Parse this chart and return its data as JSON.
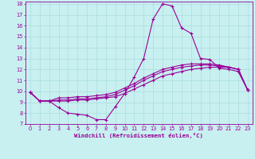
{
  "xlabel": "Windchill (Refroidissement éolien,°C)",
  "bg_color": "#c8f0f0",
  "line_color": "#990099",
  "grid_color": "#aadddd",
  "xlim": [
    -0.5,
    23.5
  ],
  "ylim": [
    7,
    18.2
  ],
  "yticks": [
    7,
    8,
    9,
    10,
    11,
    12,
    13,
    14,
    15,
    16,
    17,
    18
  ],
  "xticks": [
    0,
    1,
    2,
    3,
    4,
    5,
    6,
    7,
    8,
    9,
    10,
    11,
    12,
    13,
    14,
    15,
    16,
    17,
    18,
    19,
    20,
    21,
    22,
    23
  ],
  "line1_x": [
    0,
    1,
    2,
    3,
    4,
    5,
    6,
    7,
    8,
    9,
    10,
    11,
    12,
    13,
    14,
    15,
    16,
    17,
    18,
    19,
    20,
    21,
    22,
    23
  ],
  "line1_y": [
    9.9,
    9.1,
    9.1,
    8.5,
    8.0,
    7.9,
    7.8,
    7.4,
    7.4,
    8.6,
    9.8,
    11.3,
    13.0,
    16.6,
    18.0,
    17.8,
    15.8,
    15.3,
    13.0,
    12.9,
    12.1,
    12.0,
    11.8,
    10.1
  ],
  "line2_x": [
    0,
    1,
    2,
    3,
    4,
    5,
    6,
    7,
    8,
    9,
    10,
    11,
    12,
    13,
    14,
    15,
    16,
    17,
    18,
    19,
    20,
    21,
    22,
    23
  ],
  "line2_y": [
    9.9,
    9.1,
    9.1,
    9.1,
    9.1,
    9.2,
    9.2,
    9.3,
    9.4,
    9.5,
    9.8,
    10.2,
    10.6,
    11.0,
    11.4,
    11.6,
    11.8,
    12.0,
    12.1,
    12.2,
    12.2,
    12.2,
    12.0,
    10.1
  ],
  "line3_x": [
    0,
    1,
    2,
    3,
    4,
    5,
    6,
    7,
    8,
    9,
    10,
    11,
    12,
    13,
    14,
    15,
    16,
    17,
    18,
    19,
    20,
    21,
    22,
    23
  ],
  "line3_y": [
    9.9,
    9.1,
    9.1,
    9.2,
    9.2,
    9.3,
    9.3,
    9.4,
    9.5,
    9.7,
    10.1,
    10.5,
    11.0,
    11.4,
    11.8,
    12.0,
    12.2,
    12.3,
    12.4,
    12.4,
    12.3,
    12.2,
    12.0,
    10.1
  ],
  "line4_x": [
    0,
    1,
    2,
    3,
    4,
    5,
    6,
    7,
    8,
    9,
    10,
    11,
    12,
    13,
    14,
    15,
    16,
    17,
    18,
    19,
    20,
    21,
    22,
    23
  ],
  "line4_y": [
    9.9,
    9.1,
    9.1,
    9.4,
    9.4,
    9.5,
    9.5,
    9.6,
    9.7,
    9.9,
    10.3,
    10.7,
    11.2,
    11.6,
    12.0,
    12.2,
    12.4,
    12.5,
    12.5,
    12.5,
    12.4,
    12.2,
    12.0,
    10.1
  ]
}
